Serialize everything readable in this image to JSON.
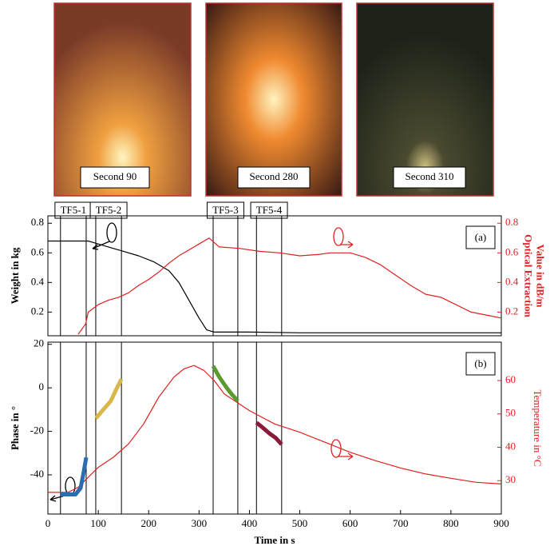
{
  "photos": [
    "Second 90",
    "Second 280",
    "Second 310"
  ],
  "chart_data": [
    {
      "type": "line",
      "panel_label": "(a)",
      "ylabel": "Weight in kg",
      "y2label": [
        "Optical Extraction",
        "Value in dB/m"
      ],
      "xlim": [
        0,
        900
      ],
      "ylim": [
        0.04,
        0.85
      ],
      "yticks": [
        0.2,
        0.4,
        0.6,
        0.8
      ],
      "y2lim": [
        0.04,
        0.85
      ],
      "y2ticks": [
        0.2,
        0.4,
        0.6,
        0.8
      ],
      "windows": [
        {
          "label": "TF5-1",
          "start": 25,
          "end": 76
        },
        {
          "label": "TF5-2",
          "start": 95,
          "end": 146
        },
        {
          "label": "TF5-3",
          "start": 328,
          "end": 377
        },
        {
          "label": "TF5-4",
          "start": 414,
          "end": 464
        }
      ],
      "series": [
        {
          "color": "#000000",
          "x": [
            0,
            80,
            90,
            120,
            150,
            180,
            210,
            240,
            260,
            280,
            300,
            315,
            330,
            400,
            500,
            600,
            700,
            800,
            900
          ],
          "values": [
            0.68,
            0.68,
            0.67,
            0.64,
            0.61,
            0.58,
            0.54,
            0.48,
            0.4,
            0.28,
            0.16,
            0.08,
            0.065,
            0.065,
            0.06,
            0.06,
            0.06,
            0.06,
            0.06
          ]
        },
        {
          "color": "#e02020",
          "axis": "y2",
          "x": [
            60,
            75,
            80,
            100,
            120,
            140,
            160,
            180,
            200,
            220,
            240,
            260,
            280,
            300,
            320,
            340,
            380,
            420,
            460,
            500,
            540,
            560,
            600,
            630,
            660,
            690,
            720,
            750,
            780,
            810,
            840,
            870,
            900
          ],
          "values": [
            0.05,
            0.12,
            0.2,
            0.25,
            0.28,
            0.3,
            0.33,
            0.38,
            0.42,
            0.47,
            0.53,
            0.58,
            0.62,
            0.66,
            0.7,
            0.64,
            0.63,
            0.61,
            0.6,
            0.58,
            0.59,
            0.6,
            0.6,
            0.57,
            0.52,
            0.45,
            0.38,
            0.32,
            0.3,
            0.25,
            0.2,
            0.18,
            0.16
          ]
        }
      ]
    },
    {
      "type": "line",
      "panel_label": "(b)",
      "ylabel": "Phase in °",
      "y2label": [
        "Temperature in °C"
      ],
      "xlabel": "Time in s",
      "xlim": [
        0,
        900
      ],
      "xticks": [
        0,
        100,
        200,
        300,
        400,
        500,
        600,
        700,
        800,
        900
      ],
      "ylim": [
        -58,
        21
      ],
      "yticks": [
        20,
        0,
        -20,
        -40
      ],
      "y2lim": [
        20,
        71.5
      ],
      "y2ticks": [
        30,
        40,
        50,
        60
      ],
      "series": [
        {
          "color": "#e02020",
          "axis": "y2",
          "x": [
            0,
            40,
            60,
            80,
            100,
            130,
            160,
            190,
            220,
            250,
            270,
            290,
            310,
            330,
            350,
            400,
            450,
            500,
            550,
            600,
            650,
            700,
            750,
            800,
            850,
            900
          ],
          "values": [
            26.5,
            26.5,
            28,
            31,
            34,
            37,
            41,
            47,
            55,
            61,
            63.5,
            64.5,
            63,
            60,
            56,
            51,
            47,
            44.5,
            41.5,
            38.5,
            36,
            33.8,
            32,
            30.7,
            29.5,
            29
          ]
        },
        {
          "color": "#2a6db0",
          "x": [
            25,
            40,
            55,
            65,
            70,
            76
          ],
          "values": [
            -49,
            -49,
            -49,
            -46,
            -40,
            -32
          ]
        },
        {
          "color": "#d8b848",
          "x": [
            95,
            110,
            125,
            135,
            146
          ],
          "values": [
            -14,
            -10,
            -6,
            -1,
            4
          ]
        },
        {
          "color": "#5a9a30",
          "x": [
            328,
            340,
            355,
            365,
            377
          ],
          "values": [
            10,
            5,
            0,
            -3,
            -6
          ]
        },
        {
          "color": "#8a1a3a",
          "x": [
            414,
            425,
            440,
            452,
            464
          ],
          "values": [
            -16,
            -18,
            -21,
            -23,
            -26
          ]
        }
      ]
    }
  ]
}
